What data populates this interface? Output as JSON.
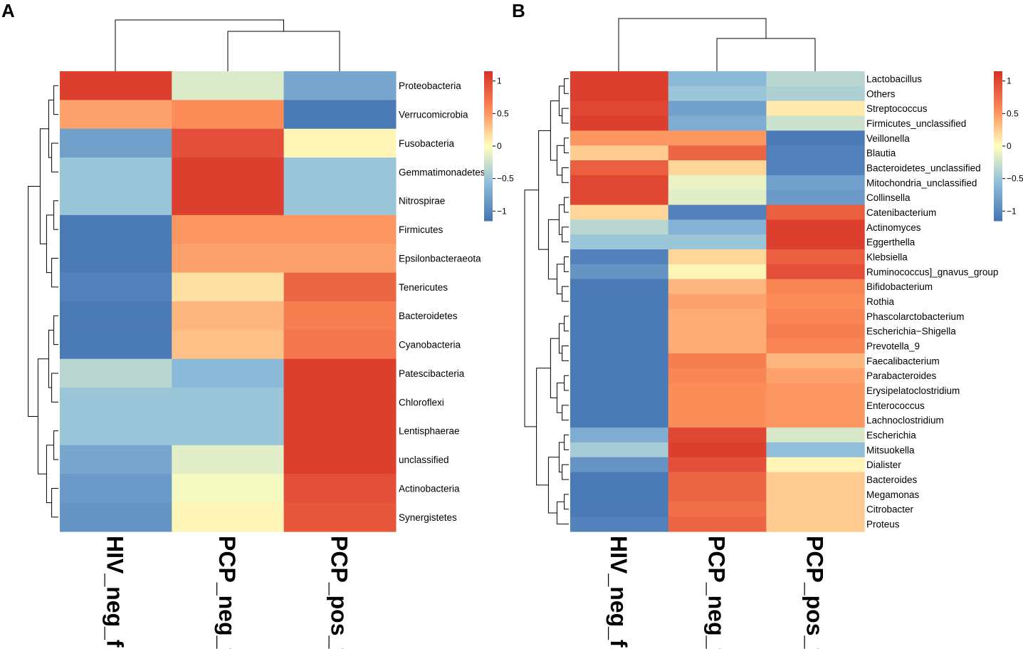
{
  "chart_data": [
    {
      "type": "heatmap",
      "panel": "A",
      "columns": [
        "HIV_neg_f",
        "PCP_neg_f",
        "PCP_pos_f"
      ],
      "rows": [
        "Proteobacteria",
        "Verrucomicrobia",
        "Fusobacteria",
        "Gemmatimonadetes",
        "Nitrospirae",
        "Firmicutes",
        "Epsilonbacteraeota",
        "Tenericutes",
        "Bacteroidetes",
        "Cyanobacteria",
        "Patescibacteria",
        "Chloroflexi",
        "Lentisphaerae",
        "unclassified",
        "Actinobacteria",
        "Synergistetes"
      ],
      "values": [
        [
          1.05,
          -0.18,
          -0.75
        ],
        [
          0.45,
          0.55,
          -1.1
        ],
        [
          -0.8,
          0.95,
          0.05
        ],
        [
          -0.5,
          1.05,
          -0.5
        ],
        [
          -0.5,
          1.05,
          -0.5
        ],
        [
          -1.1,
          0.5,
          0.5
        ],
        [
          -1.1,
          0.45,
          0.45
        ],
        [
          -1.05,
          0.15,
          0.8
        ],
        [
          -1.1,
          0.35,
          0.65
        ],
        [
          -1.1,
          0.3,
          0.7
        ],
        [
          -0.35,
          -0.6,
          1.05
        ],
        [
          -0.5,
          -0.5,
          1.05
        ],
        [
          -0.5,
          -0.5,
          1.05
        ],
        [
          -0.75,
          -0.15,
          1.05
        ],
        [
          -0.85,
          -0.05,
          0.95
        ],
        [
          -0.9,
          0.05,
          0.9
        ]
      ],
      "legend": {
        "ticks": [
          1,
          0.5,
          0,
          -0.5,
          -1
        ],
        "tick_labels": [
          "1",
          "0.5",
          "0",
          "−0.5",
          "−1"
        ],
        "range": [
          -1.15,
          1.15
        ]
      },
      "col_dendrogram": "((PCP_neg_f,PCP_pos_f),HIV_neg_f)",
      "row_dendrogram": "clustered"
    },
    {
      "type": "heatmap",
      "panel": "B",
      "columns": [
        "HIV_neg_f",
        "PCP_neg_f",
        "PCP_pos_f"
      ],
      "rows": [
        "Lactobacillus",
        "Others",
        "Streptococcus",
        "Firmicutes_unclassified",
        "Veillonella",
        "Blautia",
        "Bacteroidetes_unclassified",
        "Mitochondria_unclassified",
        "Collinsella",
        "Catenibacterium",
        "Actinomyces",
        "Eggerthella",
        "Klebsiella",
        "Ruminococcus]_gnavus_group",
        "Bifidobacterium",
        "Rothia",
        "Phascolarctobacterium",
        "Escherichia−Shigella",
        "Prevotella_9",
        "Faecalibacterium",
        "Parabacteroides",
        "Erysipelatoclostridium",
        "Enterococcus",
        "Lachnoclostridium",
        "Escherichia",
        "Mitsuokella",
        "Dialister",
        "Bacteroides",
        "Megamonas",
        "Citrobacter",
        "Proteus"
      ],
      "values": [
        [
          1.05,
          -0.6,
          -0.35
        ],
        [
          1.05,
          -0.5,
          -0.4
        ],
        [
          1.0,
          -0.8,
          0.1
        ],
        [
          1.05,
          -0.7,
          -0.25
        ],
        [
          0.5,
          0.5,
          -1.1
        ],
        [
          0.25,
          0.8,
          -1.05
        ],
        [
          0.85,
          0.2,
          -1.05
        ],
        [
          1.0,
          -0.1,
          -0.8
        ],
        [
          1.0,
          -0.15,
          -0.85
        ],
        [
          0.2,
          -1.05,
          0.85
        ],
        [
          -0.35,
          -0.65,
          1.05
        ],
        [
          -0.5,
          -0.5,
          1.05
        ],
        [
          -1.05,
          0.2,
          0.85
        ],
        [
          -0.9,
          0.05,
          0.95
        ],
        [
          -1.1,
          0.35,
          0.6
        ],
        [
          -1.1,
          0.45,
          0.55
        ],
        [
          -1.1,
          0.4,
          0.6
        ],
        [
          -1.1,
          0.4,
          0.65
        ],
        [
          -1.1,
          0.4,
          0.6
        ],
        [
          -1.1,
          0.65,
          0.35
        ],
        [
          -1.1,
          0.6,
          0.45
        ],
        [
          -1.1,
          0.55,
          0.5
        ],
        [
          -1.1,
          0.55,
          0.5
        ],
        [
          -1.1,
          0.55,
          0.5
        ],
        [
          -0.7,
          1.0,
          -0.2
        ],
        [
          -0.45,
          1.05,
          -0.55
        ],
        [
          -0.9,
          0.95,
          0.05
        ],
        [
          -1.1,
          0.8,
          0.25
        ],
        [
          -1.1,
          0.8,
          0.25
        ],
        [
          -1.1,
          0.75,
          0.25
        ],
        [
          -1.05,
          0.8,
          0.25
        ]
      ],
      "legend": {
        "ticks": [
          1,
          0.5,
          0,
          -0.5,
          -1
        ],
        "tick_labels": [
          "1",
          "0.5",
          "0",
          "−0.5",
          "−1"
        ],
        "range": [
          -1.15,
          1.15
        ]
      },
      "col_dendrogram": "((PCP_neg_f,PCP_pos_f),HIV_neg_f)",
      "row_dendrogram": "clustered"
    }
  ],
  "palette": {
    "low": "#4575b4",
    "mid_low": "#91bfdb",
    "mid": "#ffffbf",
    "mid_high": "#fc8d59",
    "high": "#d73027"
  },
  "panels": {
    "a_label": "A",
    "b_label": "B"
  }
}
